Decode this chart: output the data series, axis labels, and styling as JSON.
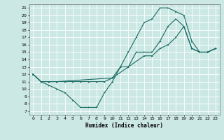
{
  "xlabel": "Humidex (Indice chaleur)",
  "bg_color": "#cce8e4",
  "line_color": "#1a6b63",
  "grid_color": "#ffffff",
  "xlim": [
    -0.5,
    23.5
  ],
  "ylim": [
    6.5,
    21.5
  ],
  "xticks": [
    0,
    1,
    2,
    3,
    4,
    5,
    6,
    7,
    8,
    9,
    10,
    11,
    12,
    13,
    14,
    15,
    16,
    17,
    18,
    19,
    20,
    21,
    22,
    23
  ],
  "yticks": [
    7,
    8,
    9,
    10,
    11,
    12,
    13,
    14,
    15,
    16,
    17,
    18,
    19,
    20,
    21
  ],
  "line1_x": [
    0,
    1,
    2,
    3,
    4,
    5,
    6,
    7,
    8,
    9,
    10,
    11,
    12,
    13,
    14,
    15,
    16,
    17,
    18,
    19,
    20,
    21,
    22,
    23
  ],
  "line1_y": [
    12,
    11,
    10.5,
    10,
    9.5,
    8.5,
    7.5,
    7.5,
    7.5,
    9.5,
    11,
    13,
    15,
    17,
    19,
    19.5,
    21,
    21,
    20.5,
    20,
    16.5,
    15,
    15,
    15.5
  ],
  "line2_x": [
    0,
    1,
    2,
    3,
    4,
    5,
    6,
    7,
    8,
    9,
    10,
    11,
    12,
    13,
    14,
    15,
    16,
    17,
    18,
    19,
    20,
    21,
    22,
    23
  ],
  "line2_y": [
    12,
    11,
    11,
    11,
    11,
    11,
    11,
    11,
    11,
    11,
    11.5,
    13,
    13,
    15,
    15,
    15,
    16.5,
    18.5,
    19.5,
    18.5,
    15.5,
    15,
    15,
    15.5
  ],
  "line3_x": [
    0,
    1,
    2,
    3,
    10,
    14,
    15,
    16,
    17,
    18,
    19,
    20,
    21,
    22,
    23
  ],
  "line3_y": [
    12,
    11,
    11,
    11,
    11.5,
    14.5,
    14.5,
    15.5,
    16,
    17,
    18.5,
    15.5,
    15,
    15,
    15.5
  ]
}
